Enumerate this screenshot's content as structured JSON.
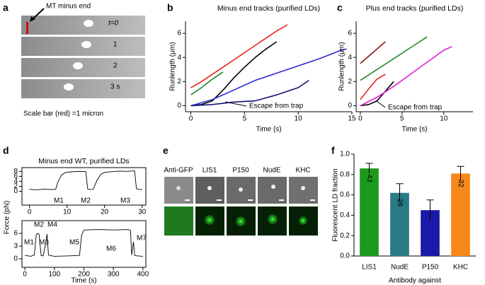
{
  "panel_labels": [
    "a",
    "b",
    "c",
    "d",
    "e",
    "f"
  ],
  "image_a": {
    "callout": "MT minus end",
    "frame_labels": [
      "t=0",
      "1",
      "2",
      "3 s"
    ],
    "caption": "Scale bar (red) =1 micron"
  },
  "image_e": {
    "labels": [
      "Anti-GFP",
      "LIS1",
      "P150",
      "NudE",
      "KHC"
    ]
  },
  "chart_data": [
    {
      "type": "line",
      "title": "Minus end tracks (purified LDs)",
      "xlabel": "Time (s)",
      "ylabel": "Runlength (μm)",
      "xlim": [
        -0.5,
        15
      ],
      "ylim": [
        -0.5,
        7
      ],
      "xticks": [
        0,
        5,
        10,
        15
      ],
      "yticks": [
        0,
        2,
        4,
        6
      ],
      "annotation": "Escape from trap",
      "series": [
        {
          "color": "#e8231e",
          "x": [
            0,
            1,
            2,
            3,
            4,
            5,
            6,
            7,
            8,
            9
          ],
          "values": [
            1.5,
            2.0,
            2.6,
            3.2,
            3.8,
            4.4,
            5.0,
            5.6,
            6.2,
            6.7
          ]
        },
        {
          "color": "#1f8a2a",
          "x": [
            0,
            1,
            2,
            3
          ],
          "values": [
            0.9,
            1.5,
            2.2,
            2.8
          ]
        },
        {
          "color": "#000000",
          "x": [
            0,
            1,
            2,
            3,
            4,
            5,
            6,
            7,
            8
          ],
          "values": [
            0,
            0.1,
            0.4,
            1.3,
            2.3,
            3.2,
            4.0,
            4.7,
            5.3
          ]
        },
        {
          "color": "#2a2ad0",
          "x": [
            0,
            2,
            4,
            6,
            8,
            10,
            12,
            14,
            14.5
          ],
          "values": [
            0,
            0.5,
            1.3,
            2.1,
            2.7,
            3.3,
            3.9,
            4.6,
            4.7
          ]
        },
        {
          "color": "#12127a",
          "x": [
            0,
            2,
            4,
            6,
            8,
            10,
            11
          ],
          "values": [
            0,
            0.1,
            0.3,
            0.4,
            0.9,
            1.5,
            2.1
          ]
        }
      ]
    },
    {
      "type": "line",
      "title": "Plus end tracks (purified LDs)",
      "xlabel": "Time (s)",
      "ylabel": "Runlength (μm)",
      "xlim": [
        -0.5,
        13.5
      ],
      "ylim": [
        -0.5,
        7
      ],
      "xticks": [
        0,
        5,
        10
      ],
      "yticks": [
        0,
        2,
        4,
        6
      ],
      "annotation": "Escape from trap",
      "series": [
        {
          "color": "#8a1010",
          "x": [
            0,
            1,
            2,
            3
          ],
          "values": [
            3.5,
            4.1,
            4.7,
            5.3
          ]
        },
        {
          "color": "#1f8a2a",
          "x": [
            0,
            2,
            4,
            6,
            8
          ],
          "values": [
            2.1,
            3.0,
            3.9,
            4.8,
            5.7
          ]
        },
        {
          "color": "#e8231e",
          "x": [
            0,
            1,
            2,
            3
          ],
          "values": [
            0.5,
            1.4,
            2.2,
            2.6
          ]
        },
        {
          "color": "#000000",
          "x": [
            0,
            1,
            2,
            3,
            4
          ],
          "values": [
            0,
            0.1,
            0.4,
            1.2,
            2.0
          ]
        },
        {
          "color": "#e020d0",
          "x": [
            0,
            2,
            4,
            6,
            8,
            10,
            11
          ],
          "values": [
            0,
            0.7,
            1.6,
            2.6,
            3.6,
            4.6,
            4.9
          ]
        }
      ]
    },
    {
      "type": "trace",
      "title": "Minus end WT, purified LDs",
      "ylabel": "Force (pN)",
      "xlim": [
        -2,
        31
      ],
      "ylim": [
        -5.5,
        9.5
      ],
      "xticks": [
        0,
        10,
        20,
        30
      ],
      "yticks": [
        0,
        2,
        4,
        6,
        8
      ],
      "annotations": [
        "M1",
        "M2",
        "M3"
      ],
      "series": [
        {
          "color": "#000000",
          "x": [
            0,
            2,
            4,
            6,
            7,
            7.5,
            8.5,
            9.5,
            11,
            13,
            15,
            15.5,
            16,
            17,
            18,
            19,
            20,
            22,
            24,
            26,
            28,
            28.5,
            29,
            30
          ],
          "values": [
            0.8,
            0.6,
            0.9,
            0.7,
            0.8,
            3.5,
            6.5,
            7.5,
            7.8,
            8.0,
            7.9,
            1.0,
            0.7,
            0.9,
            4.5,
            6.8,
            7.6,
            7.9,
            8.1,
            8.0,
            8.2,
            1.0,
            0.8,
            0.7
          ]
        }
      ]
    },
    {
      "type": "trace",
      "xlabel": "Time (s)",
      "xlim": [
        -10,
        410
      ],
      "ylim": [
        -2,
        9
      ],
      "xticks": [
        0,
        100,
        200,
        300,
        400
      ],
      "yticks": [
        0,
        3,
        6
      ],
      "annotations": [
        "M1",
        "M2",
        "M3",
        "M4",
        "M5",
        "M6",
        "M7"
      ],
      "series": [
        {
          "color": "#000000",
          "x": [
            0,
            20,
            32,
            38,
            42,
            48,
            55,
            62,
            70,
            75,
            80,
            85,
            100,
            150,
            185,
            192,
            200,
            250,
            300,
            350,
            358,
            362,
            368,
            372,
            380,
            400
          ],
          "values": [
            0.8,
            0.6,
            0.9,
            5.5,
            6.0,
            5.8,
            0.8,
            0.7,
            3.5,
            5.8,
            0.9,
            0.8,
            0.6,
            0.7,
            0.8,
            5.5,
            6.8,
            6.9,
            6.8,
            6.9,
            6.7,
            0.9,
            4.0,
            0.8,
            0.7,
            0.6
          ]
        }
      ]
    },
    {
      "type": "bar",
      "xlabel": "Antibody against",
      "ylabel": "Fluorescent LD fraction",
      "categories": [
        "LIS1",
        "NudE",
        "P150",
        "KHC"
      ],
      "values": [
        0.86,
        0.62,
        0.45,
        0.81
      ],
      "errors": [
        0.05,
        0.09,
        0.1,
        0.07
      ],
      "counts": [
        43,
        26,
        null,
        32
      ],
      "colors": [
        "#1d9a1d",
        "#2a7a85",
        "#1a1aa8",
        "#f7891b"
      ],
      "ylim": [
        0,
        1.0
      ],
      "yticks": [
        {
          "value": 0,
          "label": "0.0"
        },
        {
          "value": 0.2,
          "label": "0.2"
        },
        {
          "value": 0.4,
          "label": "0.4"
        },
        {
          "value": 0.6,
          "label": "0.6"
        },
        {
          "value": 0.8,
          "label": "0.8"
        },
        {
          "value": 1.0,
          "label": "1.0"
        }
      ]
    }
  ]
}
